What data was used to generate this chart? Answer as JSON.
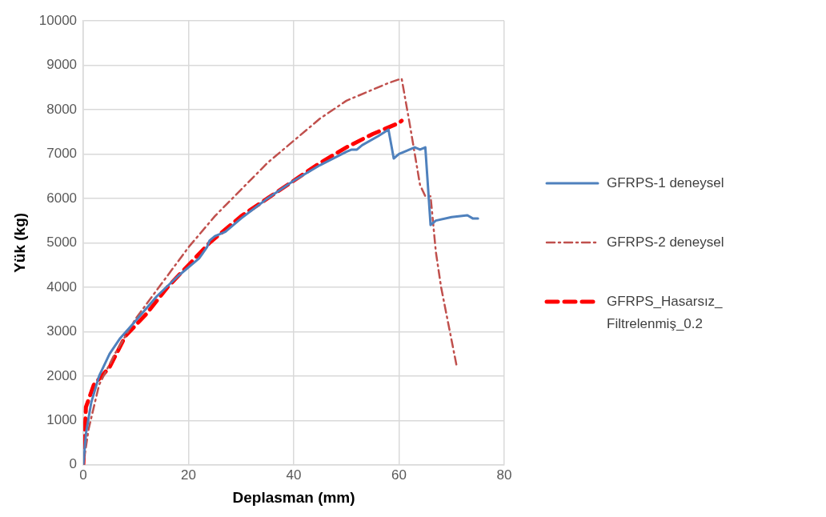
{
  "chart_data": {
    "type": "line",
    "xlabel": "Deplasman (mm)",
    "ylabel": "Yük (kg)",
    "xlim": [
      0,
      80
    ],
    "xticks": [
      0,
      20,
      40,
      60,
      80
    ],
    "ylim": [
      0,
      10000
    ],
    "yticks": [
      0,
      1000,
      2000,
      3000,
      4000,
      5000,
      6000,
      7000,
      8000,
      9000,
      10000
    ],
    "grid": true,
    "legend": "right",
    "marker": "none",
    "series": [
      {
        "name": "GFRPS-1 deneysel",
        "color": "#4f81bd",
        "line_style": "solid",
        "x": [
          0,
          0.5,
          1.5,
          3,
          5,
          7,
          10,
          14,
          18,
          22,
          23.5,
          24,
          25,
          27,
          30,
          35,
          40,
          45,
          50,
          51,
          52,
          53,
          56,
          58,
          59,
          60,
          62,
          63,
          64,
          65,
          66,
          67,
          70,
          73,
          74,
          75
        ],
        "values": [
          0,
          700,
          1400,
          2000,
          2500,
          2850,
          3250,
          3800,
          4250,
          4650,
          4900,
          5050,
          5150,
          5250,
          5550,
          6000,
          6400,
          6750,
          7050,
          7100,
          7100,
          7200,
          7400,
          7550,
          6900,
          7000,
          7100,
          7150,
          7100,
          7150,
          5400,
          5500,
          5580,
          5620,
          5550,
          5550
        ]
      },
      {
        "name": "GFRPS-2 deneysel",
        "color": "#c0504d",
        "line_style": "dashdot",
        "x": [
          0,
          1,
          3,
          6,
          10,
          15,
          20,
          25,
          30,
          35,
          40,
          45,
          50,
          55,
          58,
          60.5,
          62,
          64,
          65,
          66,
          67,
          68,
          70,
          71
        ],
        "values": [
          0,
          800,
          1800,
          2500,
          3300,
          4100,
          4900,
          5600,
          6200,
          6800,
          7300,
          7800,
          8200,
          8450,
          8600,
          8700,
          7700,
          6300,
          6050,
          6050,
          4800,
          4000,
          2800,
          2200
        ]
      },
      {
        "name": "GFRPS_Hasarsız_Filtrelenmiş_0.2",
        "color": "#ff0000",
        "line_style": "dashed",
        "x": [
          0,
          0.5,
          2,
          5,
          8,
          12,
          16,
          20,
          24,
          27,
          30,
          35,
          40,
          45,
          50,
          55,
          60,
          60.5
        ],
        "values": [
          0,
          1300,
          1800,
          2200,
          2900,
          3400,
          4000,
          4500,
          5000,
          5300,
          5600,
          6000,
          6400,
          6800,
          7150,
          7450,
          7700,
          7750
        ]
      }
    ]
  }
}
